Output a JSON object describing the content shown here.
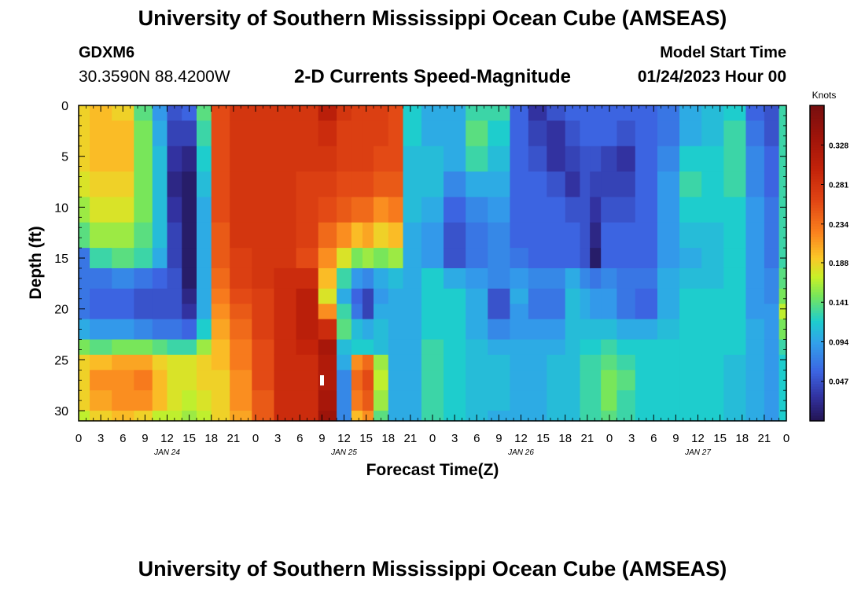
{
  "header": {
    "title": "University of Southern Mississippi Ocean Cube (AMSEAS)",
    "station_id": "GDXM6",
    "station_coords": "30.3590N  88.4200W",
    "subtitle": "2-D Currents Speed-Magnitude",
    "model_start_label": "Model Start Time",
    "model_start_value": "01/24/2023 Hour 00"
  },
  "footer": {
    "title": "University of Southern Mississippi Ocean Cube (AMSEAS)"
  },
  "chart_data": {
    "type": "heatmap",
    "title": "2-D Currents Speed-Magnitude",
    "xlabel": "Forecast Time(Z)",
    "ylabel": "Depth (ft)",
    "x_tick_labels": [
      "0",
      "3",
      "6",
      "9",
      "12",
      "15",
      "18",
      "21",
      "0",
      "3",
      "6",
      "9",
      "12",
      "15",
      "18",
      "21",
      "0",
      "3",
      "6",
      "9",
      "12",
      "15",
      "18",
      "21",
      "0",
      "3",
      "6",
      "9",
      "12",
      "15",
      "18",
      "21",
      "0"
    ],
    "x_hours": [
      0,
      3,
      6,
      9,
      12,
      15,
      18,
      21,
      24,
      27,
      30,
      33,
      36,
      39,
      42,
      45,
      48,
      51,
      54,
      57,
      60,
      63,
      66,
      69,
      72,
      75,
      78,
      81,
      84,
      87,
      90,
      93,
      96
    ],
    "day_labels": [
      "JAN 24",
      "JAN 25",
      "JAN 26",
      "JAN 27"
    ],
    "y_ticks": [
      0,
      5,
      10,
      15,
      20,
      25,
      30
    ],
    "ylim": [
      31,
      0
    ],
    "xlim": [
      0,
      96
    ],
    "colorbar": {
      "label": "Knots",
      "ticks": [
        "0.328",
        "0.281",
        "0.234",
        "0.188",
        "0.141",
        "0.094",
        "0.047"
      ],
      "tick_values": [
        0.328,
        0.281,
        0.234,
        0.188,
        0.141,
        0.094,
        0.047
      ],
      "range": [
        0.0,
        0.375
      ]
    },
    "depths": [
      0,
      3,
      5,
      8,
      10,
      13,
      15,
      17,
      19,
      20,
      22,
      24,
      25,
      27,
      29,
      31
    ],
    "columns": [
      {
        "hour": 0,
        "values": [
          0.19,
          0.19,
          0.19,
          0.18,
          0.16,
          0.14,
          0.07,
          0.07,
          0.07,
          0.07,
          0.1,
          0.15,
          0.19,
          0.19,
          0.19,
          0.17
        ]
      },
      {
        "hour": 3,
        "values": [
          0.2,
          0.2,
          0.2,
          0.19,
          0.18,
          0.16,
          0.13,
          0.07,
          0.06,
          0.06,
          0.09,
          0.14,
          0.2,
          0.22,
          0.21,
          0.19
        ]
      },
      {
        "hour": 6,
        "values": [
          0.19,
          0.2,
          0.2,
          0.19,
          0.18,
          0.16,
          0.14,
          0.08,
          0.06,
          0.06,
          0.09,
          0.15,
          0.21,
          0.22,
          0.22,
          0.2
        ]
      },
      {
        "hour": 9,
        "values": [
          0.14,
          0.15,
          0.15,
          0.15,
          0.15,
          0.14,
          0.13,
          0.07,
          0.05,
          0.05,
          0.08,
          0.15,
          0.21,
          0.23,
          0.22,
          0.19
        ]
      },
      {
        "hour": 11,
        "values": [
          0.09,
          0.1,
          0.11,
          0.11,
          0.11,
          0.11,
          0.1,
          0.06,
          0.05,
          0.05,
          0.07,
          0.14,
          0.19,
          0.2,
          0.2,
          0.17
        ]
      },
      {
        "hour": 13,
        "values": [
          0.05,
          0.04,
          0.03,
          0.02,
          0.03,
          0.04,
          0.04,
          0.05,
          0.05,
          0.05,
          0.07,
          0.13,
          0.18,
          0.18,
          0.18,
          0.17
        ]
      },
      {
        "hour": 15,
        "values": [
          0.06,
          0.04,
          0.02,
          0.01,
          0.01,
          0.01,
          0.01,
          0.01,
          0.02,
          0.03,
          0.06,
          0.13,
          0.18,
          0.18,
          0.17,
          0.16
        ]
      },
      {
        "hour": 17,
        "values": [
          0.14,
          0.13,
          0.12,
          0.11,
          0.1,
          0.1,
          0.1,
          0.1,
          0.1,
          0.1,
          0.12,
          0.16,
          0.19,
          0.19,
          0.18,
          0.17
        ]
      },
      {
        "hour": 19,
        "values": [
          0.26,
          0.26,
          0.26,
          0.26,
          0.26,
          0.25,
          0.25,
          0.24,
          0.23,
          0.22,
          0.21,
          0.2,
          0.2,
          0.19,
          0.19,
          0.19
        ]
      },
      {
        "hour": 22,
        "values": [
          0.28,
          0.28,
          0.28,
          0.28,
          0.28,
          0.28,
          0.27,
          0.27,
          0.26,
          0.25,
          0.24,
          0.23,
          0.23,
          0.22,
          0.22,
          0.21
        ]
      },
      {
        "hour": 25,
        "values": [
          0.28,
          0.28,
          0.28,
          0.28,
          0.28,
          0.28,
          0.28,
          0.28,
          0.27,
          0.27,
          0.27,
          0.26,
          0.26,
          0.26,
          0.25,
          0.25
        ]
      },
      {
        "hour": 28,
        "values": [
          0.28,
          0.28,
          0.28,
          0.28,
          0.28,
          0.28,
          0.28,
          0.29,
          0.29,
          0.29,
          0.29,
          0.29,
          0.29,
          0.29,
          0.29,
          0.29
        ]
      },
      {
        "hour": 31,
        "values": [
          0.28,
          0.28,
          0.28,
          0.27,
          0.27,
          0.27,
          0.26,
          0.29,
          0.31,
          0.31,
          0.31,
          0.3,
          0.29,
          0.29,
          0.29,
          0.29
        ]
      },
      {
        "hour": 34,
        "values": [
          0.31,
          0.29,
          0.28,
          0.27,
          0.26,
          0.24,
          0.22,
          0.2,
          0.18,
          0.22,
          0.29,
          0.33,
          0.32,
          0.32,
          0.33,
          0.34
        ]
      },
      {
        "hour": 36,
        "values": [
          0.28,
          0.27,
          0.27,
          0.26,
          0.25,
          0.22,
          0.18,
          0.13,
          0.1,
          0.13,
          0.14,
          0.11,
          0.1,
          0.08,
          0.08,
          0.08
        ]
      },
      {
        "hour": 38,
        "values": [
          0.27,
          0.27,
          0.27,
          0.26,
          0.24,
          0.2,
          0.15,
          0.09,
          0.06,
          0.07,
          0.11,
          0.12,
          0.22,
          0.24,
          0.23,
          0.2
        ]
      },
      {
        "hour": 39,
        "values": [
          0.27,
          0.27,
          0.27,
          0.26,
          0.24,
          0.21,
          0.16,
          0.08,
          0.04,
          0.04,
          0.1,
          0.12,
          0.24,
          0.26,
          0.25,
          0.22
        ]
      },
      {
        "hour": 41,
        "values": [
          0.27,
          0.27,
          0.26,
          0.25,
          0.22,
          0.19,
          0.15,
          0.1,
          0.09,
          0.1,
          0.11,
          0.11,
          0.16,
          0.17,
          0.16,
          0.14
        ]
      },
      {
        "hour": 43,
        "values": [
          0.26,
          0.26,
          0.26,
          0.25,
          0.23,
          0.2,
          0.16,
          0.11,
          0.1,
          0.1,
          0.1,
          0.1,
          0.1,
          0.1,
          0.1,
          0.1
        ]
      },
      {
        "hour": 45,
        "values": [
          0.12,
          0.12,
          0.11,
          0.11,
          0.11,
          0.1,
          0.1,
          0.1,
          0.1,
          0.1,
          0.1,
          0.1,
          0.1,
          0.1,
          0.1,
          0.1
        ]
      },
      {
        "hour": 48,
        "values": [
          0.1,
          0.1,
          0.11,
          0.11,
          0.1,
          0.09,
          0.09,
          0.12,
          0.12,
          0.12,
          0.12,
          0.13,
          0.13,
          0.13,
          0.13,
          0.13
        ]
      },
      {
        "hour": 51,
        "values": [
          0.1,
          0.1,
          0.1,
          0.08,
          0.06,
          0.05,
          0.05,
          0.1,
          0.12,
          0.12,
          0.12,
          0.12,
          0.12,
          0.12,
          0.12,
          0.12
        ]
      },
      {
        "hour": 54,
        "values": [
          0.13,
          0.14,
          0.13,
          0.1,
          0.08,
          0.07,
          0.07,
          0.09,
          0.1,
          0.1,
          0.1,
          0.11,
          0.11,
          0.11,
          0.11,
          0.11
        ]
      },
      {
        "hour": 57,
        "values": [
          0.13,
          0.12,
          0.11,
          0.1,
          0.09,
          0.08,
          0.08,
          0.08,
          0.05,
          0.05,
          0.08,
          0.1,
          0.11,
          0.11,
          0.11,
          0.1
        ]
      },
      {
        "hour": 60,
        "values": [
          0.06,
          0.06,
          0.06,
          0.06,
          0.06,
          0.06,
          0.07,
          0.09,
          0.1,
          0.09,
          0.09,
          0.1,
          0.1,
          0.1,
          0.1,
          0.1
        ]
      },
      {
        "hour": 62,
        "values": [
          0.03,
          0.04,
          0.05,
          0.06,
          0.06,
          0.06,
          0.06,
          0.08,
          0.07,
          0.07,
          0.09,
          0.1,
          0.1,
          0.1,
          0.1,
          0.1
        ]
      },
      {
        "hour": 65,
        "values": [
          0.05,
          0.03,
          0.03,
          0.05,
          0.06,
          0.06,
          0.06,
          0.08,
          0.07,
          0.07,
          0.09,
          0.1,
          0.11,
          0.11,
          0.11,
          0.11
        ]
      },
      {
        "hour": 67,
        "values": [
          0.06,
          0.05,
          0.04,
          0.03,
          0.05,
          0.06,
          0.06,
          0.1,
          0.11,
          0.11,
          0.11,
          0.11,
          0.11,
          0.11,
          0.11,
          0.11
        ]
      },
      {
        "hour": 69,
        "values": [
          0.06,
          0.06,
          0.05,
          0.05,
          0.05,
          0.05,
          0.05,
          0.08,
          0.1,
          0.1,
          0.11,
          0.12,
          0.13,
          0.13,
          0.13,
          0.13
        ]
      },
      {
        "hour": 69.7,
        "values": [
          0.06,
          0.06,
          0.05,
          0.04,
          0.03,
          0.02,
          0.01,
          0.07,
          0.09,
          0.09,
          0.11,
          0.12,
          0.13,
          0.13,
          0.13,
          0.13
        ]
      },
      {
        "hour": 72,
        "values": [
          0.06,
          0.06,
          0.04,
          0.04,
          0.05,
          0.06,
          0.06,
          0.08,
          0.09,
          0.09,
          0.11,
          0.13,
          0.14,
          0.15,
          0.15,
          0.14
        ]
      },
      {
        "hour": 74,
        "values": [
          0.06,
          0.05,
          0.03,
          0.04,
          0.05,
          0.06,
          0.06,
          0.07,
          0.07,
          0.07,
          0.1,
          0.12,
          0.13,
          0.14,
          0.13,
          0.13
        ]
      },
      {
        "hour": 77,
        "values": [
          0.06,
          0.06,
          0.06,
          0.06,
          0.06,
          0.06,
          0.06,
          0.07,
          0.06,
          0.06,
          0.1,
          0.12,
          0.12,
          0.12,
          0.12,
          0.12
        ]
      },
      {
        "hour": 80,
        "values": [
          0.07,
          0.07,
          0.08,
          0.09,
          0.09,
          0.09,
          0.09,
          0.1,
          0.1,
          0.1,
          0.11,
          0.12,
          0.12,
          0.12,
          0.12,
          0.12
        ]
      },
      {
        "hour": 83,
        "values": [
          0.1,
          0.1,
          0.12,
          0.13,
          0.12,
          0.11,
          0.1,
          0.11,
          0.12,
          0.12,
          0.12,
          0.12,
          0.12,
          0.12,
          0.12,
          0.12
        ]
      },
      {
        "hour": 86,
        "values": [
          0.11,
          0.11,
          0.12,
          0.12,
          0.12,
          0.11,
          0.11,
          0.11,
          0.12,
          0.12,
          0.12,
          0.12,
          0.12,
          0.12,
          0.12,
          0.12
        ]
      },
      {
        "hour": 89,
        "values": [
          0.12,
          0.13,
          0.13,
          0.13,
          0.12,
          0.12,
          0.12,
          0.12,
          0.12,
          0.12,
          0.12,
          0.12,
          0.11,
          0.11,
          0.11,
          0.11
        ]
      },
      {
        "hour": 92,
        "values": [
          0.06,
          0.07,
          0.08,
          0.08,
          0.09,
          0.09,
          0.09,
          0.09,
          0.09,
          0.09,
          0.1,
          0.1,
          0.1,
          0.1,
          0.1,
          0.1
        ]
      },
      {
        "hour": 94,
        "values": [
          0.05,
          0.05,
          0.06,
          0.06,
          0.07,
          0.07,
          0.07,
          0.08,
          0.08,
          0.09,
          0.09,
          0.09,
          0.09,
          0.09,
          0.09,
          0.09
        ]
      },
      {
        "hour": 96,
        "values": [
          0.13,
          0.13,
          0.13,
          0.13,
          0.13,
          0.13,
          0.13,
          0.14,
          0.15,
          0.17,
          0.15,
          0.13,
          0.12,
          0.12,
          0.12,
          0.12
        ]
      }
    ],
    "grid": false
  }
}
